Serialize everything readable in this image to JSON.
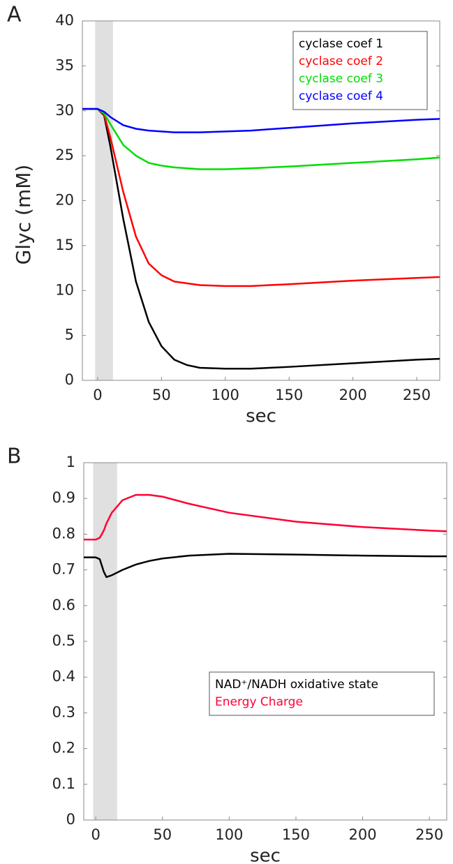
{
  "chart_data": [
    {
      "type": "line",
      "panel_label": "A",
      "xlabel": "sec",
      "ylabel": "Glyc (mM)",
      "x": [
        -12,
        0,
        5,
        10,
        20,
        30,
        40,
        50,
        60,
        70,
        80,
        100,
        120,
        150,
        200,
        250,
        268
      ],
      "series": [
        {
          "name": "cyclase coef 1",
          "color": "#000000",
          "values": [
            30.2,
            30.2,
            29.5,
            26,
            18,
            11,
            6.5,
            3.8,
            2.3,
            1.7,
            1.4,
            1.3,
            1.3,
            1.5,
            1.9,
            2.3,
            2.4
          ]
        },
        {
          "name": "cyclase coef 2",
          "color": "#ff0000",
          "values": [
            30.2,
            30.2,
            29.6,
            27,
            21,
            16,
            13,
            11.7,
            11,
            10.8,
            10.6,
            10.5,
            10.5,
            10.7,
            11.1,
            11.4,
            11.5
          ]
        },
        {
          "name": "cyclase coef 3",
          "color": "#00dd00",
          "values": [
            30.2,
            30.2,
            29.7,
            28.5,
            26.2,
            25,
            24.2,
            23.9,
            23.7,
            23.6,
            23.5,
            23.5,
            23.6,
            23.8,
            24.2,
            24.6,
            24.8
          ]
        },
        {
          "name": "cyclase coef 4",
          "color": "#0000ff",
          "values": [
            30.2,
            30.2,
            29.9,
            29.3,
            28.4,
            28,
            27.8,
            27.7,
            27.6,
            27.6,
            27.6,
            27.7,
            27.8,
            28.1,
            28.6,
            29,
            29.1
          ]
        }
      ],
      "xlim": [
        -12,
        268
      ],
      "xticks": [
        0,
        50,
        100,
        150,
        200,
        250
      ],
      "ylim": [
        0,
        40
      ],
      "yticks": [
        0,
        5,
        10,
        15,
        20,
        25,
        30,
        35,
        40
      ],
      "shaded_region": [
        -2,
        12
      ],
      "legend": "upper right"
    },
    {
      "type": "line",
      "panel_label": "B",
      "xlabel": "sec",
      "x": [
        -9,
        0,
        3,
        6,
        8,
        12,
        20,
        30,
        40,
        50,
        70,
        100,
        150,
        200,
        250,
        263
      ],
      "series": [
        {
          "name": "NAD⁺/NADH oxidative state",
          "color": "#000000",
          "values": [
            0.735,
            0.735,
            0.73,
            0.695,
            0.68,
            0.685,
            0.7,
            0.715,
            0.725,
            0.732,
            0.74,
            0.745,
            0.743,
            0.74,
            0.738,
            0.738
          ]
        },
        {
          "name": "Energy Charge",
          "color": "#ff0033",
          "values": [
            0.785,
            0.785,
            0.79,
            0.81,
            0.83,
            0.86,
            0.895,
            0.91,
            0.91,
            0.905,
            0.885,
            0.86,
            0.835,
            0.82,
            0.81,
            0.808
          ]
        }
      ],
      "xlim": [
        -9,
        263
      ],
      "xticks": [
        0,
        50,
        100,
        150,
        200,
        250
      ],
      "ylim": [
        0,
        1
      ],
      "yticks": [
        0,
        0.1,
        0.2,
        0.3,
        0.4,
        0.5,
        0.6,
        0.7,
        0.8,
        0.9,
        1
      ],
      "shaded_region": [
        -2,
        16
      ],
      "legend": "lower right"
    }
  ]
}
